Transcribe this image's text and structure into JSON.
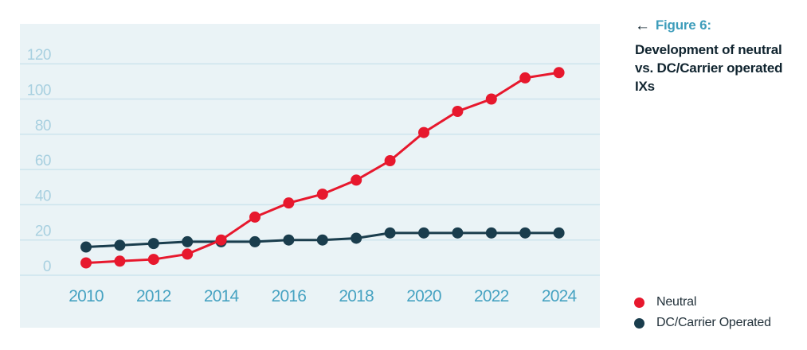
{
  "figure": {
    "arrow": "←",
    "label": "Figure 6:",
    "title_lines": [
      "Development of neutral",
      "vs. DC/Carrier operated",
      "IXs"
    ]
  },
  "legend": {
    "items": [
      {
        "label": "Neutral",
        "color": "#e7182d"
      },
      {
        "label": "DC/Carrier Operated",
        "color": "#1a3d4d"
      }
    ]
  },
  "colors": {
    "panel_background": "#eaf3f6",
    "gridline": "#cde4ed",
    "y_tick_label": "#a8d0e0",
    "x_tick_label": "#47a3c2",
    "neutral_series": "#e7182d",
    "dc_carrier_series": "#1a3d4d",
    "caption_accent": "#3e9dbb",
    "caption_text": "#10242f"
  },
  "chart_data": {
    "type": "line",
    "title": "Figure 6: Development of neutral vs. DC/Carrier operated IXs",
    "x": [
      2010,
      2011,
      2012,
      2013,
      2014,
      2015,
      2016,
      2017,
      2018,
      2019,
      2020,
      2021,
      2022,
      2023,
      2024
    ],
    "series": [
      {
        "name": "DC/Carrier Operated",
        "color": "#1a3d4d",
        "values": [
          16,
          17,
          18,
          19,
          19,
          19,
          20,
          20,
          21,
          24,
          24,
          24,
          24,
          24,
          24
        ]
      },
      {
        "name": "Neutral",
        "color": "#e7182d",
        "values": [
          7,
          8,
          9,
          12,
          20,
          33,
          41,
          46,
          54,
          65,
          81,
          93,
          100,
          112,
          115
        ]
      }
    ],
    "xticks": [
      2010,
      2012,
      2014,
      2016,
      2018,
      2020,
      2022,
      2024
    ],
    "yticks": [
      0,
      20,
      40,
      60,
      80,
      100,
      120
    ],
    "ylim": [
      0,
      132
    ],
    "grid": true,
    "legend_position": "bottom-right",
    "xlabel": "",
    "ylabel": ""
  }
}
